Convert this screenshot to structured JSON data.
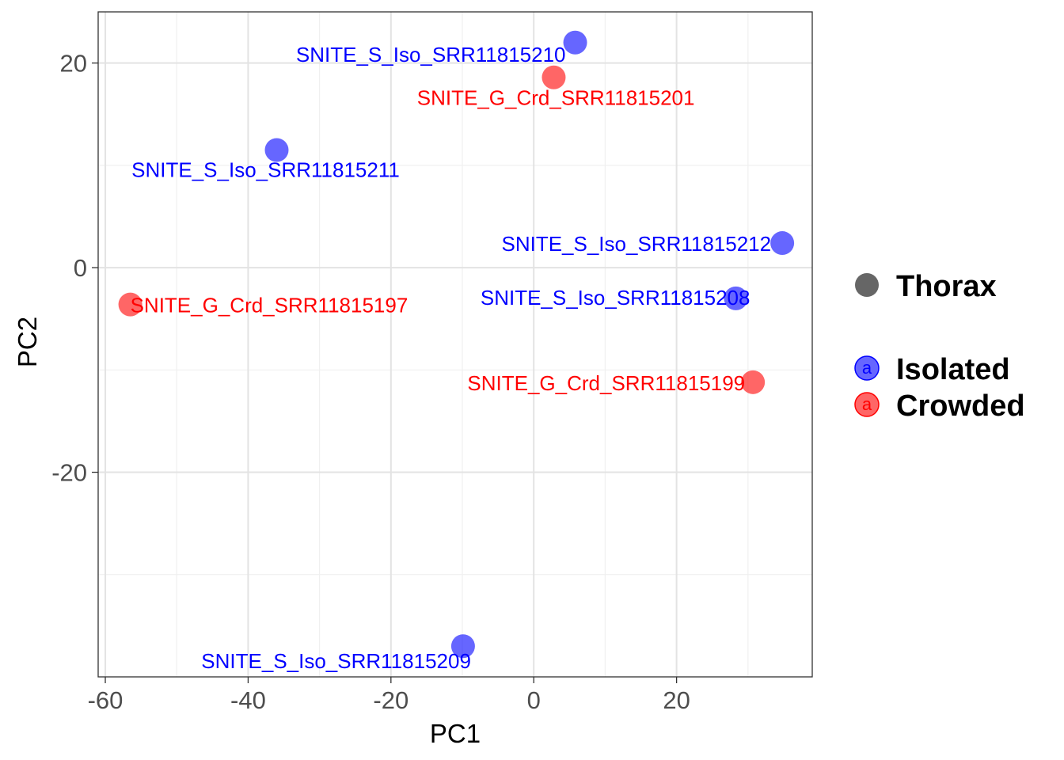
{
  "chart_data": {
    "type": "scatter",
    "xlabel": "PC1",
    "ylabel": "PC2",
    "xlim": [
      -61,
      39
    ],
    "ylim": [
      -40,
      25
    ],
    "x_ticks": [
      -60,
      -40,
      -20,
      0,
      20
    ],
    "x_tick_labels": [
      "-60",
      "-40",
      "-20",
      "0",
      "20"
    ],
    "y_ticks": [
      -20,
      0,
      20
    ],
    "y_tick_labels": [
      "-20",
      "0",
      "20"
    ],
    "grid": true,
    "legend_position": "right",
    "legend": {
      "shape_title": "Thorax",
      "shape_color": "#666666",
      "groups": [
        {
          "label": "Isolated",
          "color": "#0000ff",
          "key_glyph": "a"
        },
        {
          "label": "Crowded",
          "color": "#ff0000",
          "key_glyph": "a"
        }
      ]
    },
    "points": [
      {
        "label": "SNITE_S_Iso_SRR11815210",
        "x": 5.8,
        "y": 22.0,
        "group": "Isolated"
      },
      {
        "label": "SNITE_G_Crd_SRR11815201",
        "x": 2.8,
        "y": 18.6,
        "group": "Crowded"
      },
      {
        "label": "SNITE_S_Iso_SRR11815211",
        "x": -36.0,
        "y": 11.5,
        "group": "Isolated"
      },
      {
        "label": "SNITE_S_Iso_SRR11815212",
        "x": 34.8,
        "y": 2.4,
        "group": "Isolated"
      },
      {
        "label": "SNITE_S_Iso_SRR11815208",
        "x": 28.3,
        "y": -3.0,
        "group": "Isolated"
      },
      {
        "label": "SNITE_G_Crd_SRR11815197",
        "x": -56.5,
        "y": -3.6,
        "group": "Crowded"
      },
      {
        "label": "SNITE_G_Crd_SRR11815199",
        "x": 30.7,
        "y": -11.2,
        "group": "Crowded"
      },
      {
        "label": "SNITE_S_Iso_SRR11815209",
        "x": -9.9,
        "y": -37.0,
        "group": "Isolated"
      }
    ]
  }
}
